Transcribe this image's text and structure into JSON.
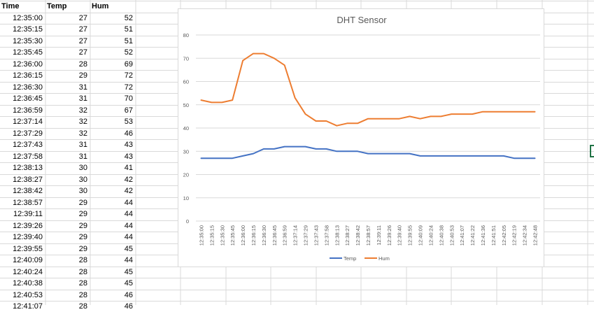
{
  "sheet": {
    "headers": [
      "Time",
      "Temp",
      "Hum"
    ],
    "rows": [
      [
        "12:35:00",
        27,
        52
      ],
      [
        "12:35:15",
        27,
        51
      ],
      [
        "12:35:30",
        27,
        51
      ],
      [
        "12:35:45",
        27,
        52
      ],
      [
        "12:36:00",
        28,
        69
      ],
      [
        "12:36:15",
        29,
        72
      ],
      [
        "12:36:30",
        31,
        72
      ],
      [
        "12:36:45",
        31,
        70
      ],
      [
        "12:36:59",
        32,
        67
      ],
      [
        "12:37:14",
        32,
        53
      ],
      [
        "12:37:29",
        32,
        46
      ],
      [
        "12:37:43",
        31,
        43
      ],
      [
        "12:37:58",
        31,
        43
      ],
      [
        "12:38:13",
        30,
        41
      ],
      [
        "12:38:27",
        30,
        42
      ],
      [
        "12:38:42",
        30,
        42
      ],
      [
        "12:38:57",
        29,
        44
      ],
      [
        "12:39:11",
        29,
        44
      ],
      [
        "12:39:26",
        29,
        44
      ],
      [
        "12:39:40",
        29,
        44
      ],
      [
        "12:39:55",
        29,
        45
      ],
      [
        "12:40:09",
        28,
        44
      ],
      [
        "12:40:24",
        28,
        45
      ],
      [
        "12:40:38",
        28,
        45
      ],
      [
        "12:40:53",
        28,
        46
      ],
      [
        "12:41:07",
        28,
        46
      ]
    ]
  },
  "chart_data": {
    "type": "line",
    "title": "DHT Sensor",
    "xlabel": "",
    "ylabel": "",
    "ylim": [
      0,
      80
    ],
    "yticks": [
      0,
      10,
      20,
      30,
      40,
      50,
      60,
      70,
      80
    ],
    "grid": true,
    "legend": "bottom",
    "categories": [
      "12:35:00",
      "12:35:15",
      "12:35:30",
      "12:35:45",
      "12:36:00",
      "12:36:15",
      "12:36:30",
      "12:36:45",
      "12:36:59",
      "12:37:14",
      "12:37:29",
      "12:37:43",
      "12:37:58",
      "12:38:13",
      "12:38:27",
      "12:38:42",
      "12:38:57",
      "12:39:11",
      "12:39:26",
      "12:39:40",
      "12:39:55",
      "12:40:09",
      "12:40:24",
      "12:40:38",
      "12:40:53",
      "12:41:07",
      "12:41:22",
      "12:41:36",
      "12:41:51",
      "12:42:05",
      "12:42:19",
      "12:42:34",
      "12:42:48"
    ],
    "x_tick_labels": [
      "12:35:00",
      "12:35:15",
      "12:35:30",
      "12:35:45",
      "12:36:00",
      "12:36:15",
      "12:36:30",
      "12:36:45",
      "12:36:59",
      "12:37:14",
      "12:37:29",
      "12:37:43",
      "12:37:58",
      "12:38:13",
      "12:38:27",
      "12:38:42",
      "12:38:57",
      "12:39:11",
      "12:39:26",
      "12:39:40",
      "12:39:55",
      "12:40:09",
      "12:40:24",
      "12:40:38",
      "12:40:53",
      "12:41:07",
      "12:41:22",
      "12:41:36",
      "12:41:51",
      "12:42:05",
      "12:42:19",
      "12:42:34",
      "12:42:48"
    ],
    "series": [
      {
        "name": "Temp",
        "color": "#4472c4",
        "values": [
          27,
          27,
          27,
          27,
          28,
          29,
          31,
          31,
          32,
          32,
          32,
          31,
          31,
          30,
          30,
          30,
          29,
          29,
          29,
          29,
          29,
          28,
          28,
          28,
          28,
          28,
          28,
          28,
          28,
          28,
          27,
          27,
          27
        ]
      },
      {
        "name": "Hum",
        "color": "#ed7d31",
        "values": [
          52,
          51,
          51,
          52,
          69,
          72,
          72,
          70,
          67,
          53,
          46,
          43,
          43,
          41,
          42,
          42,
          44,
          44,
          44,
          44,
          45,
          44,
          45,
          45,
          46,
          46,
          46,
          47,
          47,
          47,
          47,
          47,
          47
        ]
      }
    ]
  },
  "colors": {
    "gridline": "#d9d9d9",
    "selection": "#217346"
  }
}
